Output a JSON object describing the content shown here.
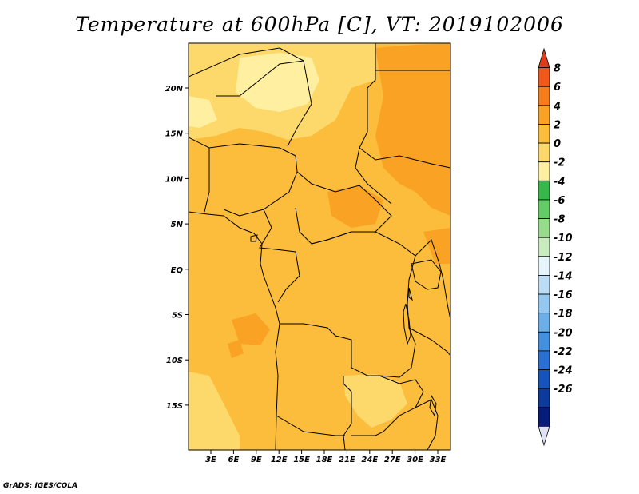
{
  "title": "Temperature at 600hPa [C], VT: 2019102006",
  "credit": "GrADS: IGES/COLA",
  "lat_labels": [
    "20N",
    "15N",
    "10N",
    "5N",
    "EQ",
    "5S",
    "10S",
    "15S"
  ],
  "lon_labels": [
    "3E",
    "6E",
    "9E",
    "12E",
    "15E",
    "18E",
    "21E",
    "24E",
    "27E",
    "30E",
    "33E"
  ],
  "colorbar": {
    "labels": [
      "8",
      "6",
      "4",
      "2",
      "0",
      "-2",
      "-4",
      "-6",
      "-8",
      "-10",
      "-12",
      "-14",
      "-16",
      "-18",
      "-20",
      "-22",
      "-24",
      "-26"
    ],
    "colors_top_to_bottom": [
      "#e03a1c",
      "#f2581a",
      "#f77d1a",
      "#f9a224",
      "#fbbd3b",
      "#fdd86a",
      "#fef0a0",
      "#37b84b",
      "#63cc67",
      "#98dc8b",
      "#c9ecbe",
      "#e6f4fb",
      "#bddcf5",
      "#95c8f0",
      "#6caee8",
      "#4390de",
      "#2970d2",
      "#1653bc",
      "#0c3a9d",
      "#061c7a",
      "#dfe1f5"
    ]
  },
  "field_colors": {
    "base": "#fbbd3b",
    "warm": "#f9a224",
    "cool": "#fdd86a",
    "coolest": "#fef0a0"
  }
}
